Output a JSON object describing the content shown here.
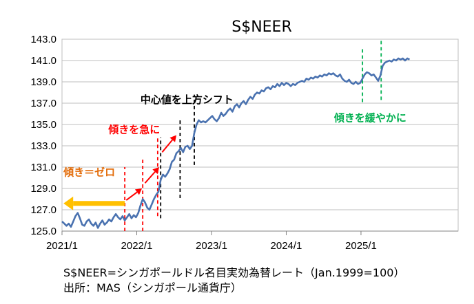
{
  "chart_data": {
    "type": "line",
    "title": "S$NEER",
    "xlabel": "",
    "ylabel": "",
    "ylim": [
      125.0,
      143.0
    ],
    "y_ticks": [
      "125.0",
      "127.0",
      "129.0",
      "131.0",
      "133.0",
      "135.0",
      "137.0",
      "139.0",
      "141.0",
      "143.0"
    ],
    "xlim": [
      2021.0,
      2026.3
    ],
    "x_ticks": [
      {
        "value": 2021.0,
        "label": "2021/1"
      },
      {
        "value": 2022.0,
        "label": "2022/1"
      },
      {
        "value": 2023.0,
        "label": "2023/1"
      },
      {
        "value": 2024.0,
        "label": "2024/1"
      },
      {
        "value": 2025.0,
        "label": "2025/1"
      }
    ],
    "grid": "horizontal",
    "series": [
      {
        "name": "S$NEER",
        "color": "#4a72b0",
        "points": [
          [
            2021.0,
            125.9
          ],
          [
            2021.03,
            125.7
          ],
          [
            2021.06,
            125.5
          ],
          [
            2021.09,
            125.7
          ],
          [
            2021.12,
            125.4
          ],
          [
            2021.15,
            125.9
          ],
          [
            2021.18,
            126.4
          ],
          [
            2021.21,
            126.7
          ],
          [
            2021.24,
            126.2
          ],
          [
            2021.27,
            125.6
          ],
          [
            2021.3,
            125.5
          ],
          [
            2021.33,
            125.9
          ],
          [
            2021.36,
            126.1
          ],
          [
            2021.39,
            125.7
          ],
          [
            2021.42,
            125.5
          ],
          [
            2021.45,
            125.8
          ],
          [
            2021.48,
            125.3
          ],
          [
            2021.51,
            125.7
          ],
          [
            2021.54,
            126.0
          ],
          [
            2021.57,
            125.6
          ],
          [
            2021.6,
            125.8
          ],
          [
            2021.63,
            126.1
          ],
          [
            2021.66,
            125.9
          ],
          [
            2021.69,
            126.3
          ],
          [
            2021.72,
            126.6
          ],
          [
            2021.75,
            126.3
          ],
          [
            2021.78,
            126.1
          ],
          [
            2021.81,
            126.4
          ],
          [
            2021.84,
            126.0
          ],
          [
            2021.87,
            126.3
          ],
          [
            2021.9,
            126.6
          ],
          [
            2021.93,
            126.2
          ],
          [
            2021.96,
            126.5
          ],
          [
            2021.99,
            126.3
          ],
          [
            2022.02,
            126.7
          ],
          [
            2022.05,
            127.4
          ],
          [
            2022.08,
            128.0
          ],
          [
            2022.11,
            127.7
          ],
          [
            2022.14,
            127.2
          ],
          [
            2022.17,
            127.0
          ],
          [
            2022.2,
            127.5
          ],
          [
            2022.23,
            128.0
          ],
          [
            2022.26,
            128.4
          ],
          [
            2022.29,
            128.7
          ],
          [
            2022.32,
            129.8
          ],
          [
            2022.35,
            130.3
          ],
          [
            2022.38,
            130.1
          ],
          [
            2022.41,
            130.4
          ],
          [
            2022.44,
            130.8
          ],
          [
            2022.47,
            131.5
          ],
          [
            2022.5,
            131.7
          ],
          [
            2022.53,
            132.3
          ],
          [
            2022.56,
            132.5
          ],
          [
            2022.59,
            132.8
          ],
          [
            2022.62,
            132.4
          ],
          [
            2022.65,
            132.9
          ],
          [
            2022.68,
            133.0
          ],
          [
            2022.71,
            132.7
          ],
          [
            2022.74,
            133.0
          ],
          [
            2022.77,
            134.2
          ],
          [
            2022.8,
            135.0
          ],
          [
            2022.83,
            135.4
          ],
          [
            2022.86,
            135.2
          ],
          [
            2022.89,
            135.3
          ],
          [
            2022.92,
            135.2
          ],
          [
            2022.95,
            135.4
          ],
          [
            2022.98,
            135.6
          ],
          [
            2023.01,
            135.8
          ],
          [
            2023.04,
            135.5
          ],
          [
            2023.07,
            135.3
          ],
          [
            2023.1,
            135.6
          ],
          [
            2023.13,
            136.1
          ],
          [
            2023.16,
            135.8
          ],
          [
            2023.19,
            136.0
          ],
          [
            2023.22,
            136.3
          ],
          [
            2023.25,
            136.5
          ],
          [
            2023.28,
            136.2
          ],
          [
            2023.31,
            136.7
          ],
          [
            2023.34,
            136.9
          ],
          [
            2023.37,
            136.6
          ],
          [
            2023.4,
            137.0
          ],
          [
            2023.43,
            137.2
          ],
          [
            2023.46,
            136.9
          ],
          [
            2023.49,
            137.3
          ],
          [
            2023.52,
            137.6
          ],
          [
            2023.55,
            137.4
          ],
          [
            2023.58,
            137.8
          ],
          [
            2023.61,
            138.0
          ],
          [
            2023.64,
            137.9
          ],
          [
            2023.67,
            138.2
          ],
          [
            2023.7,
            138.1
          ],
          [
            2023.73,
            138.4
          ],
          [
            2023.76,
            138.5
          ],
          [
            2023.79,
            138.3
          ],
          [
            2023.82,
            138.6
          ],
          [
            2023.85,
            138.5
          ],
          [
            2023.88,
            138.8
          ],
          [
            2023.91,
            138.6
          ],
          [
            2023.94,
            138.9
          ],
          [
            2023.97,
            138.7
          ],
          [
            2024.0,
            138.9
          ],
          [
            2024.03,
            138.8
          ],
          [
            2024.06,
            138.6
          ],
          [
            2024.09,
            138.8
          ],
          [
            2024.12,
            138.7
          ],
          [
            2024.15,
            138.9
          ],
          [
            2024.18,
            139.0
          ],
          [
            2024.21,
            139.1
          ],
          [
            2024.24,
            139.0
          ],
          [
            2024.27,
            139.3
          ],
          [
            2024.3,
            139.2
          ],
          [
            2024.33,
            139.4
          ],
          [
            2024.36,
            139.3
          ],
          [
            2024.39,
            139.5
          ],
          [
            2024.42,
            139.4
          ],
          [
            2024.45,
            139.6
          ],
          [
            2024.48,
            139.5
          ],
          [
            2024.51,
            139.7
          ],
          [
            2024.54,
            139.6
          ],
          [
            2024.57,
            139.8
          ],
          [
            2024.6,
            139.7
          ],
          [
            2024.63,
            139.8
          ],
          [
            2024.66,
            139.6
          ],
          [
            2024.69,
            139.5
          ],
          [
            2024.72,
            139.7
          ],
          [
            2024.75,
            139.3
          ],
          [
            2024.78,
            139.1
          ],
          [
            2024.81,
            139.0
          ],
          [
            2024.84,
            139.2
          ],
          [
            2024.87,
            138.9
          ],
          [
            2024.9,
            138.8
          ],
          [
            2024.93,
            139.0
          ],
          [
            2024.96,
            138.8
          ],
          [
            2024.99,
            138.9
          ],
          [
            2025.02,
            139.3
          ],
          [
            2025.05,
            139.7
          ],
          [
            2025.08,
            139.9
          ],
          [
            2025.11,
            139.8
          ],
          [
            2025.14,
            139.6
          ],
          [
            2025.17,
            139.7
          ],
          [
            2025.2,
            139.4
          ],
          [
            2025.23,
            139.1
          ],
          [
            2025.26,
            139.6
          ],
          [
            2025.29,
            140.5
          ],
          [
            2025.32,
            140.8
          ],
          [
            2025.35,
            140.9
          ],
          [
            2025.38,
            141.0
          ],
          [
            2025.41,
            140.9
          ],
          [
            2025.44,
            141.1
          ],
          [
            2025.47,
            141.0
          ],
          [
            2025.5,
            141.2
          ],
          [
            2025.53,
            141.1
          ],
          [
            2025.56,
            141.2
          ],
          [
            2025.59,
            141.0
          ],
          [
            2025.62,
            141.2
          ],
          [
            2025.65,
            141.1
          ]
        ]
      }
    ],
    "annotations": [
      {
        "text": "傾き＝ゼロ",
        "color": "#e36c09",
        "x": 2021.02,
        "y": 130.2
      },
      {
        "text": "傾きを急に",
        "color": "#ff0000",
        "x": 2021.62,
        "y": 134.2
      },
      {
        "text": "中心値を上方シフト",
        "color": "#000000",
        "x": 2022.05,
        "y": 137.0
      },
      {
        "text": "傾きを緩やかに",
        "color": "#00b050",
        "x": 2024.64,
        "y": 135.3
      }
    ],
    "arrows": [
      {
        "color": "#ffc000",
        "from": [
          2021.84,
          127.6
        ],
        "to": [
          2021.02,
          127.6
        ]
      },
      {
        "color": "#ff0000",
        "from": [
          2021.86,
          127.9
        ],
        "to": [
          2022.07,
          129.0
        ]
      },
      {
        "color": "#ff0000",
        "from": [
          2022.11,
          129.5
        ],
        "to": [
          2022.3,
          131.0
        ]
      },
      {
        "color": "#ff0000",
        "from": [
          2022.34,
          132.4
        ],
        "to": [
          2022.53,
          134.0
        ]
      }
    ],
    "markers": [
      {
        "color": "#ff0000",
        "x": 2021.84,
        "y_from": 125.0,
        "y_to": 131.0
      },
      {
        "color": "#ff0000",
        "x": 2022.08,
        "y_from": 125.0,
        "y_to": 131.7
      },
      {
        "color": "#ff0000",
        "x": 2022.28,
        "y_from": 126.4,
        "y_to": 133.7
      },
      {
        "color": "#000000",
        "x": 2022.32,
        "y_from": 126.2,
        "y_to": 133.8
      },
      {
        "color": "#000000",
        "x": 2022.58,
        "y_from": 128.1,
        "y_to": 135.4
      },
      {
        "color": "#000000",
        "x": 2022.77,
        "y_from": 131.2,
        "y_to": 137.8
      },
      {
        "color": "#00b050",
        "x": 2025.02,
        "y_from": 137.1,
        "y_to": 142.3
      },
      {
        "color": "#00b050",
        "x": 2025.27,
        "y_from": 137.3,
        "y_to": 143.0
      }
    ]
  },
  "notes": {
    "line1": "S$NEER=シンガポールドル名目実効為替レート（Jan.1999=100）",
    "line2": "出所：MAS（シンガポール通貨庁）"
  }
}
